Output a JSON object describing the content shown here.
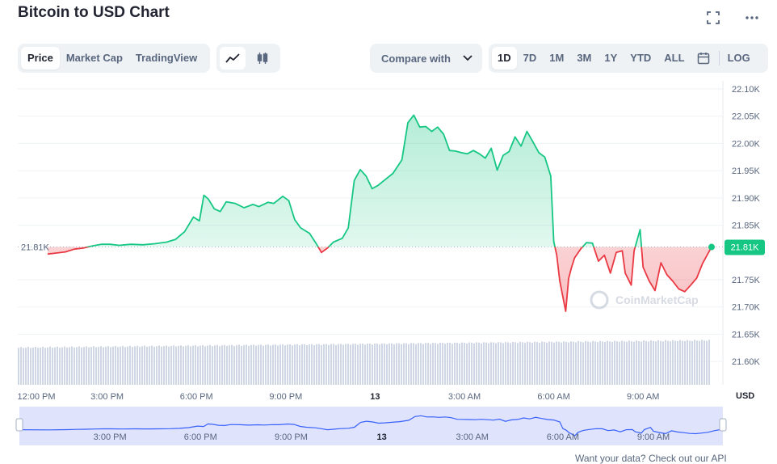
{
  "header": {
    "title": "Bitcoin to USD Chart"
  },
  "tabs": [
    {
      "label": "Price",
      "active": true
    },
    {
      "label": "Market Cap",
      "active": false
    },
    {
      "label": "TradingView",
      "active": false
    }
  ],
  "chart_types": [
    {
      "icon": "line-chart-icon",
      "active": true
    },
    {
      "icon": "candlestick-icon",
      "active": false
    }
  ],
  "compare": {
    "label": "Compare with"
  },
  "ranges": [
    {
      "label": "1D",
      "active": true
    },
    {
      "label": "7D",
      "active": false
    },
    {
      "label": "1M",
      "active": false
    },
    {
      "label": "3M",
      "active": false
    },
    {
      "label": "1Y",
      "active": false
    },
    {
      "label": "YTD",
      "active": false
    },
    {
      "label": "ALL",
      "active": false
    }
  ],
  "log_label": "LOG",
  "footer": {
    "text": "Want your data? Check out our API",
    "link": "API"
  },
  "colors": {
    "up": "#16c784",
    "down": "#ea3943",
    "volume": "#cfd6e4",
    "navigator_fill": "#dfe3fb",
    "navigator_line": "#3861fb",
    "grid": "#eff2f5",
    "axis_text": "#58667e"
  },
  "chart_data": {
    "type": "line",
    "title": "Bitcoin to USD Chart",
    "currency": "USD",
    "baseline_price": 21810,
    "baseline_label": "21.81K",
    "current_price": 21810,
    "current_label": "21.81K",
    "ylim": [
      21575,
      22100
    ],
    "yticks": [
      {
        "v": 22100,
        "label": "22.10K"
      },
      {
        "v": 22050,
        "label": "22.05K"
      },
      {
        "v": 22000,
        "label": "22.00K"
      },
      {
        "v": 21950,
        "label": "21.95K"
      },
      {
        "v": 21900,
        "label": "21.90K"
      },
      {
        "v": 21850,
        "label": "21.85K"
      },
      {
        "v": 21750,
        "label": "21.75K"
      },
      {
        "v": 21700,
        "label": "21.70K"
      },
      {
        "v": 21650,
        "label": "21.65K"
      },
      {
        "v": 21600,
        "label": "21.60K"
      }
    ],
    "x_unit": "hours since 12:00 PM",
    "xlim": [
      0,
      23.3
    ],
    "xticks": [
      {
        "t": 0,
        "label": "12:00 PM",
        "bold": false
      },
      {
        "t": 3,
        "label": "3:00 PM",
        "bold": false
      },
      {
        "t": 6,
        "label": "6:00 PM",
        "bold": false
      },
      {
        "t": 9,
        "label": "9:00 PM",
        "bold": false
      },
      {
        "t": 12,
        "label": "13",
        "bold": true
      },
      {
        "t": 15,
        "label": "3:00 AM",
        "bold": false
      },
      {
        "t": 18,
        "label": "6:00 AM",
        "bold": false
      },
      {
        "t": 21,
        "label": "9:00 AM",
        "bold": false
      }
    ],
    "navigator_ticks": [
      {
        "t": 3,
        "label": "3:00 PM",
        "bold": false
      },
      {
        "t": 6,
        "label": "6:00 PM",
        "bold": false
      },
      {
        "t": 9,
        "label": "9:00 PM",
        "bold": false
      },
      {
        "t": 12,
        "label": "13",
        "bold": true
      },
      {
        "t": 15,
        "label": "3:00 AM",
        "bold": false
      },
      {
        "t": 18,
        "label": "6:00 AM",
        "bold": false
      },
      {
        "t": 21,
        "label": "9:00 AM",
        "bold": false
      }
    ],
    "series": [
      {
        "points": [
          [
            1.0,
            21797
          ],
          [
            1.3,
            21799
          ],
          [
            1.6,
            21801
          ],
          [
            1.9,
            21806
          ],
          [
            2.2,
            21808
          ],
          [
            2.5,
            21812
          ],
          [
            2.8,
            21815
          ],
          [
            3.1,
            21815
          ],
          [
            3.4,
            21813
          ],
          [
            3.8,
            21815
          ],
          [
            4.2,
            21814
          ],
          [
            4.6,
            21816
          ],
          [
            5.0,
            21819
          ],
          [
            5.3,
            21824
          ],
          [
            5.6,
            21838
          ],
          [
            5.9,
            21865
          ],
          [
            6.1,
            21858
          ],
          [
            6.25,
            21905
          ],
          [
            6.4,
            21898
          ],
          [
            6.6,
            21880
          ],
          [
            6.8,
            21875
          ],
          [
            7.0,
            21893
          ],
          [
            7.3,
            21890
          ],
          [
            7.6,
            21882
          ],
          [
            7.9,
            21888
          ],
          [
            8.1,
            21884
          ],
          [
            8.4,
            21892
          ],
          [
            8.6,
            21890
          ],
          [
            8.9,
            21903
          ],
          [
            9.1,
            21895
          ],
          [
            9.3,
            21860
          ],
          [
            9.5,
            21845
          ],
          [
            9.8,
            21835
          ],
          [
            10.0,
            21818
          ],
          [
            10.2,
            21800
          ],
          [
            10.4,
            21808
          ],
          [
            10.6,
            21819
          ],
          [
            10.9,
            21826
          ],
          [
            11.1,
            21845
          ],
          [
            11.3,
            21932
          ],
          [
            11.5,
            21952
          ],
          [
            11.7,
            21940
          ],
          [
            11.9,
            21917
          ],
          [
            12.1,
            21923
          ],
          [
            12.3,
            21932
          ],
          [
            12.6,
            21945
          ],
          [
            12.9,
            21970
          ],
          [
            13.1,
            22038
          ],
          [
            13.3,
            22052
          ],
          [
            13.5,
            22030
          ],
          [
            13.7,
            22031
          ],
          [
            13.9,
            22022
          ],
          [
            14.1,
            22030
          ],
          [
            14.3,
            22017
          ],
          [
            14.5,
            21987
          ],
          [
            14.7,
            21986
          ],
          [
            14.9,
            21983
          ],
          [
            15.1,
            21981
          ],
          [
            15.3,
            21987
          ],
          [
            15.5,
            21981
          ],
          [
            15.7,
            21973
          ],
          [
            15.9,
            21991
          ],
          [
            16.1,
            21951
          ],
          [
            16.3,
            21978
          ],
          [
            16.5,
            21985
          ],
          [
            16.7,
            22012
          ],
          [
            16.9,
            21995
          ],
          [
            17.1,
            22022
          ],
          [
            17.3,
            22003
          ],
          [
            17.5,
            21983
          ],
          [
            17.7,
            21975
          ],
          [
            17.9,
            21940
          ],
          [
            18.0,
            21820
          ],
          [
            18.1,
            21795
          ],
          [
            18.2,
            21748
          ],
          [
            18.4,
            21692
          ],
          [
            18.5,
            21752
          ],
          [
            18.6,
            21773
          ],
          [
            18.7,
            21790
          ],
          [
            18.9,
            21806
          ],
          [
            19.1,
            21818
          ],
          [
            19.3,
            21817
          ],
          [
            19.5,
            21784
          ],
          [
            19.7,
            21795
          ],
          [
            19.9,
            21762
          ],
          [
            20.1,
            21800
          ],
          [
            20.3,
            21803
          ],
          [
            20.4,
            21762
          ],
          [
            20.6,
            21740
          ],
          [
            20.7,
            21803
          ],
          [
            20.9,
            21842
          ],
          [
            21.0,
            21773
          ],
          [
            21.2,
            21748
          ],
          [
            21.4,
            21730
          ],
          [
            21.6,
            21781
          ],
          [
            21.8,
            21759
          ],
          [
            22.0,
            21747
          ],
          [
            22.2,
            21733
          ],
          [
            22.4,
            21728
          ],
          [
            22.6,
            21740
          ],
          [
            22.8,
            21753
          ],
          [
            23.0,
            21780
          ],
          [
            23.3,
            21810
          ]
        ]
      }
    ]
  }
}
